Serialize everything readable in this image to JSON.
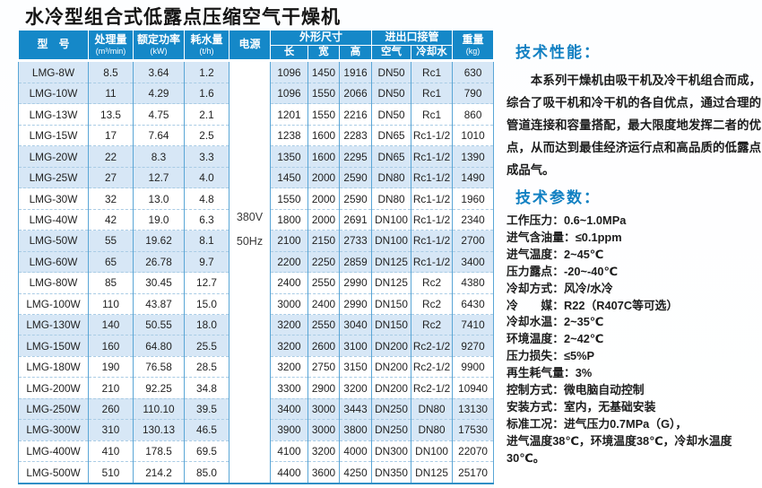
{
  "title": "水冷型组合式低露点压缩空气干燥机",
  "colors": {
    "header_bg": "#1588c8",
    "row_alt_bg": "#d7e7f6",
    "grid_line": "#5aa6d6",
    "dashed_line": "#a9cce5",
    "bottom_line": "#2f8fc6",
    "heading_text": "#1180c2"
  },
  "table": {
    "header": {
      "model": "型　号",
      "capacity_label": "处理量",
      "capacity_unit": "(m³/min)",
      "power_label": "额定功率",
      "power_unit": "(kW)",
      "water_label": "耗水量",
      "water_unit": "(t/h)",
      "supply_label": "电源",
      "dims_label": "外形尺寸",
      "dim_length": "长",
      "dim_width": "宽",
      "dim_height": "高",
      "conn_label": "进出口接管",
      "conn_air": "空气",
      "conn_water": "冷却水",
      "weight_label": "重量",
      "weight_unit": "(kg)"
    },
    "power_supply": [
      "380V",
      "50Hz"
    ],
    "rows": [
      [
        "LMG-8W",
        "8.5",
        "3.64",
        "1.2",
        "1096",
        "1450",
        "1916",
        "DN50",
        "Rc1",
        "630"
      ],
      [
        "LMG-10W",
        "11",
        "4.29",
        "1.6",
        "1096",
        "1550",
        "2066",
        "DN50",
        "Rc1",
        "790"
      ],
      [
        "LMG-13W",
        "13.5",
        "4.75",
        "2.1",
        "1201",
        "1550",
        "2216",
        "DN50",
        "Rc1",
        "860"
      ],
      [
        "LMG-15W",
        "17",
        "7.64",
        "2.5",
        "1238",
        "1600",
        "2283",
        "DN65",
        "Rc1-1/2",
        "1010"
      ],
      [
        "LMG-20W",
        "22",
        "8.3",
        "3.3",
        "1350",
        "1600",
        "2295",
        "DN65",
        "Rc1-1/2",
        "1390"
      ],
      [
        "LMG-25W",
        "27",
        "12.7",
        "4.0",
        "1450",
        "2000",
        "2590",
        "DN80",
        "Rc1-1/2",
        "1490"
      ],
      [
        "LMG-30W",
        "32",
        "13.0",
        "4.8",
        "1550",
        "2000",
        "2590",
        "DN80",
        "Rc1-1/2",
        "1960"
      ],
      [
        "LMG-40W",
        "42",
        "19.0",
        "6.3",
        "1800",
        "2000",
        "2691",
        "DN100",
        "Rc1-1/2",
        "2340"
      ],
      [
        "LMG-50W",
        "55",
        "19.62",
        "8.1",
        "2100",
        "2150",
        "2733",
        "DN100",
        "Rc1-1/2",
        "2700"
      ],
      [
        "LMG-60W",
        "65",
        "26.78",
        "9.7",
        "2200",
        "2250",
        "2859",
        "DN125",
        "Rc1-1/2",
        "3400"
      ],
      [
        "LMG-80W",
        "85",
        "30.45",
        "12.7",
        "2400",
        "2550",
        "2990",
        "DN125",
        "Rc2",
        "4380"
      ],
      [
        "LMG-100W",
        "110",
        "43.87",
        "15.0",
        "3000",
        "2400",
        "2990",
        "DN150",
        "Rc2",
        "6430"
      ],
      [
        "LMG-130W",
        "140",
        "50.55",
        "18.0",
        "3200",
        "2550",
        "3040",
        "DN150",
        "Rc2",
        "7410"
      ],
      [
        "LMG-150W",
        "160",
        "64.80",
        "25.5",
        "3200",
        "2600",
        "3100",
        "DN200",
        "Rc2-1/2",
        "9270"
      ],
      [
        "LMG-180W",
        "190",
        "76.58",
        "28.5",
        "3200",
        "2750",
        "3150",
        "DN200",
        "Rc2-1/2",
        "9900"
      ],
      [
        "LMG-200W",
        "210",
        "92.25",
        "34.8",
        "3300",
        "2900",
        "3200",
        "DN200",
        "Rc2-1/2",
        "10940"
      ],
      [
        "LMG-250W",
        "260",
        "110.10",
        "39.5",
        "3400",
        "3000",
        "3443",
        "DN250",
        "DN80",
        "13130"
      ],
      [
        "LMG-300W",
        "310",
        "130.13",
        "46.5",
        "3900",
        "3000",
        "3800",
        "DN250",
        "DN80",
        "17530"
      ],
      [
        "LMG-400W",
        "410",
        "178.5",
        "69.5",
        "4100",
        "3200",
        "4000",
        "DN300",
        "DN100",
        "22070"
      ],
      [
        "LMG-500W",
        "510",
        "214.2",
        "85.0",
        "4400",
        "3600",
        "4250",
        "DN350",
        "DN125",
        "25170"
      ]
    ]
  },
  "performance": {
    "heading": "技术性能：",
    "body": "本系列干燥机由吸干机及冷干机组合而成，综合了吸干机和冷干机的各自优点，通过合理的管道连接和容量搭配，最大限度地发挥二者的优点，从而达到最佳经济运行点和高品质的低露点成品气。"
  },
  "parameters": {
    "heading": "技术参数：",
    "items": [
      "工作压力：0.6~1.0MPa",
      "进气含油量：≤0.1ppm",
      "进气温度：2~45℃",
      "压力露点：-20~-40℃",
      "冷却方式：风冷/水冷",
      "冷　　媒：R22（R407C等可选）",
      "冷却水温：2~35℃",
      "环境温度：2~42℃",
      "压力损失：≤5%P",
      "再生耗气量：3%",
      "控制方式：微电脑自动控制",
      "安装方式：室内，无基础安装",
      "标准工况：进气压力0.7MPa（G），",
      "进气温度38℃，环境温度38℃，冷却水温度30℃。"
    ]
  }
}
